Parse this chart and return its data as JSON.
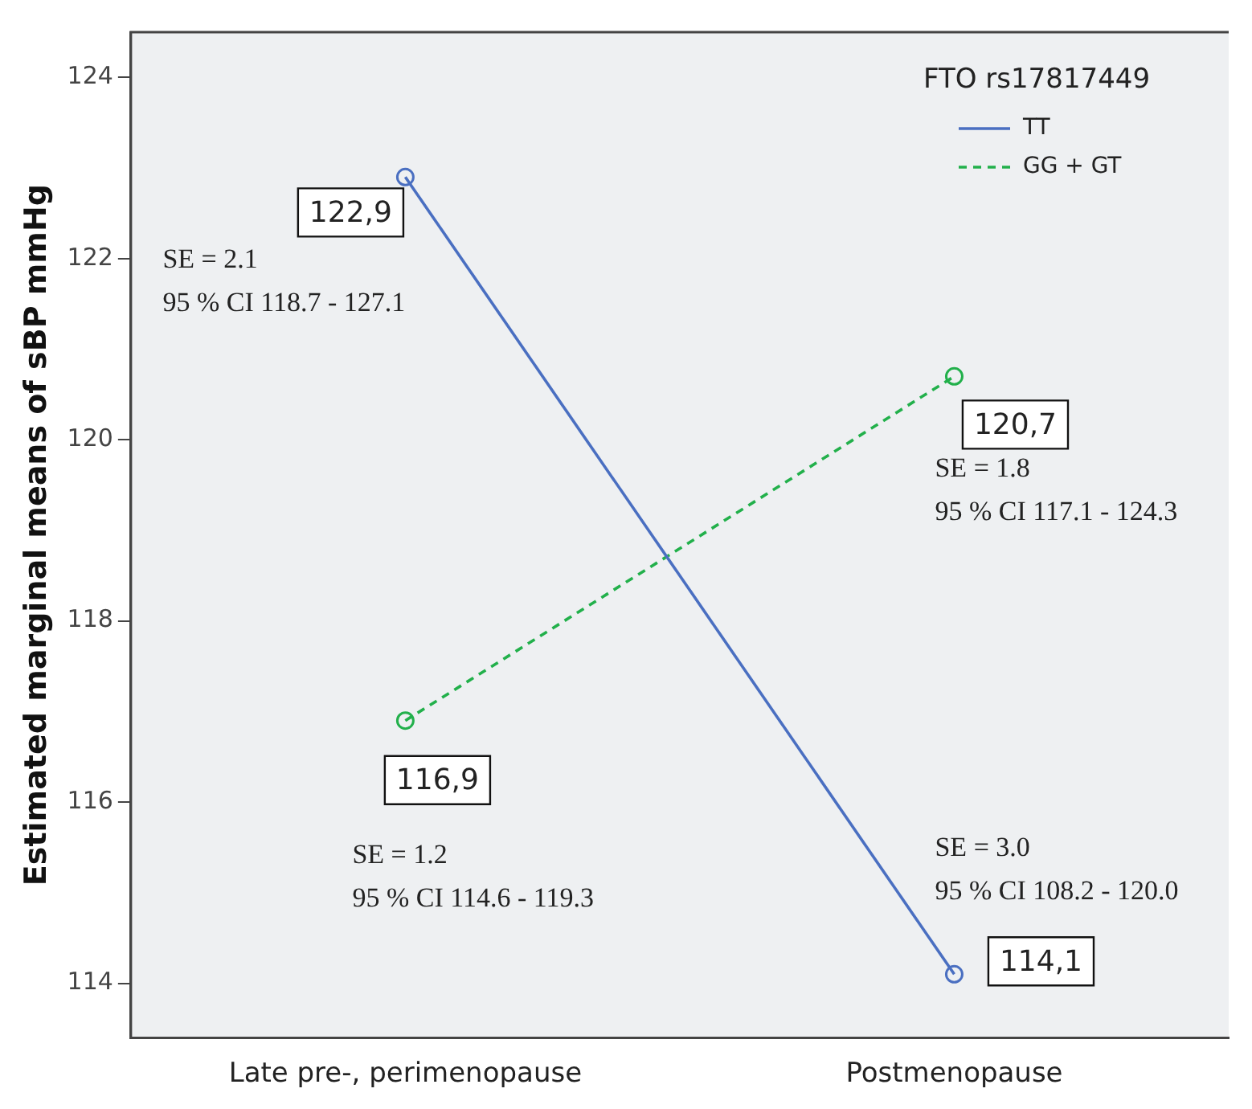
{
  "chart_data": {
    "type": "line",
    "ylabel": "Estimated marginal means of sBP mmHg",
    "legend_title": "FTO rs17817449",
    "legend": "top right",
    "marker": "circle",
    "grid": false,
    "categories": [
      "Late pre-, perimenopause",
      "Postmenopause"
    ],
    "ylim": [
      113.4,
      124.5
    ],
    "yticks": [
      114,
      116,
      118,
      120,
      122,
      124
    ],
    "series": [
      {
        "name": "TT",
        "color": "#4a6fc1",
        "line_style": "solid",
        "values": [
          122.9,
          114.1
        ],
        "value_labels": [
          "122,9",
          "114,1"
        ]
      },
      {
        "name": "GG + GT",
        "color": "#22b04b",
        "line_style": "dashed",
        "values": [
          116.9,
          120.7
        ],
        "value_labels": [
          "116,9",
          "120,7"
        ]
      }
    ],
    "annotations": [
      "SE = 2.1\n95 % CI 118.7 - 127.1",
      "SE = 1.8\n95 % CI 117.1 - 124.3",
      "SE = 1.2\n95 % CI 114.6 - 119.3",
      "SE = 3.0\n95 % CI 108.2 - 120.0"
    ]
  }
}
